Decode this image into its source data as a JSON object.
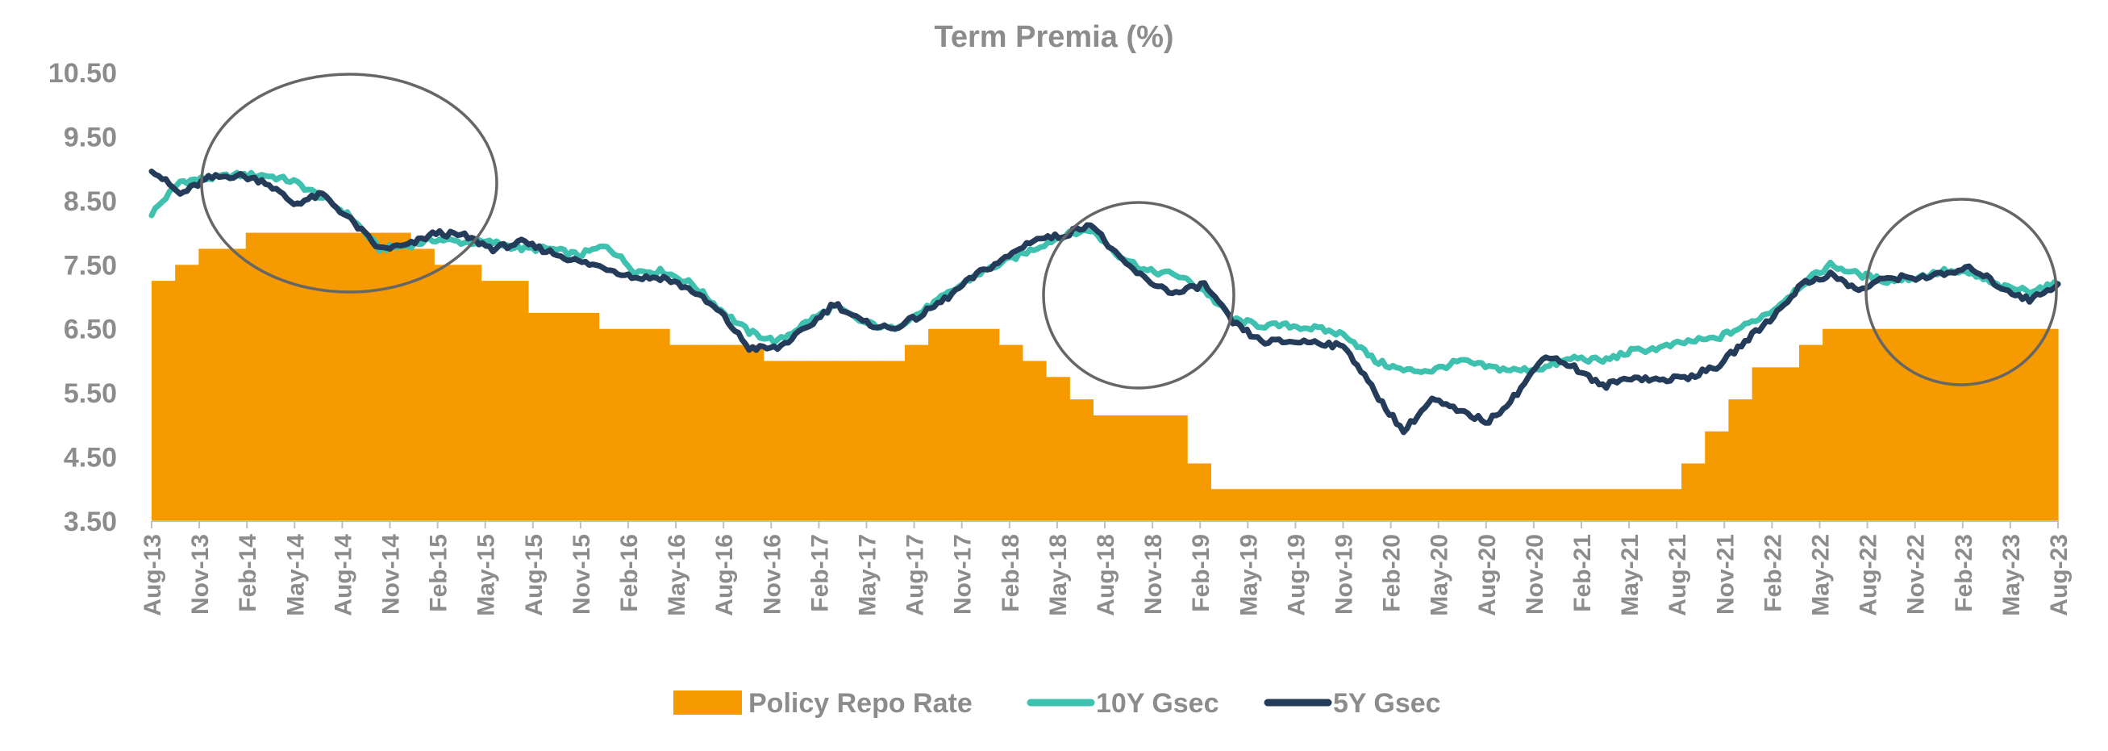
{
  "chart_data": {
    "type": "line",
    "title": "Term Premia (%)",
    "xlabel": "",
    "ylabel": "",
    "ylim": [
      3.5,
      10.5
    ],
    "y_ticks": [
      "10.50",
      "9.50",
      "8.50",
      "7.50",
      "6.50",
      "5.50",
      "4.50",
      "3.50"
    ],
    "x_ticks": [
      "Aug-13",
      "Nov-13",
      "Feb-14",
      "May-14",
      "Aug-14",
      "Nov-14",
      "Feb-15",
      "May-15",
      "Aug-15",
      "Nov-15",
      "Feb-16",
      "May-16",
      "Aug-16",
      "Nov-16",
      "Feb-17",
      "May-17",
      "Aug-17",
      "Nov-17",
      "Feb-18",
      "May-18",
      "Aug-18",
      "Nov-18",
      "Feb-19",
      "May-19",
      "Aug-19",
      "Nov-19",
      "Feb-20",
      "May-20",
      "Aug-20",
      "Nov-20",
      "Feb-21",
      "May-21",
      "Aug-21",
      "Nov-21",
      "Feb-22",
      "May-22",
      "Aug-22",
      "Nov-22",
      "Feb-23",
      "May-23",
      "Aug-23"
    ],
    "grid": false,
    "legend_position": "bottom",
    "series": [
      {
        "name": "Policy Repo Rate",
        "kind": "area-step",
        "color": "#f59a00",
        "values": [
          7.25,
          7.5,
          7.75,
          7.75,
          8,
          8,
          8,
          8,
          8,
          8,
          8,
          7.75,
          7.5,
          7.5,
          7.25,
          7.25,
          6.75,
          6.75,
          6.75,
          6.5,
          6.5,
          6.5,
          6.25,
          6.25,
          6.25,
          6.25,
          6,
          6,
          6,
          6,
          6,
          6,
          6.25,
          6.5,
          6.5,
          6.5,
          6.25,
          6,
          5.75,
          5.4,
          5.15,
          5.15,
          5.15,
          5.15,
          4.4,
          4,
          4,
          4,
          4,
          4,
          4,
          4,
          4,
          4,
          4,
          4,
          4,
          4,
          4,
          4,
          4,
          4,
          4,
          4,
          4,
          4.4,
          4.9,
          5.4,
          5.9,
          5.9,
          6.25,
          6.5,
          6.5,
          6.5,
          6.5,
          6.5,
          6.5,
          6.5,
          6.5,
          6.5,
          6.5
        ]
      },
      {
        "name": "10Y Gsec",
        "kind": "line",
        "color": "#3fc1b0",
        "values": [
          8.3,
          8.8,
          8.85,
          8.9,
          8.9,
          8.8,
          8.55,
          8.25,
          7.75,
          7.8,
          7.9,
          7.85,
          7.85,
          7.75,
          7.75,
          7.65,
          7.8,
          7.4,
          7.4,
          7.2,
          6.8,
          6.45,
          6.3,
          6.6,
          6.85,
          6.6,
          6.5,
          6.75,
          7.05,
          7.35,
          7.55,
          7.75,
          7.95,
          8.05,
          7.65,
          7.4,
          7.35,
          7.1,
          6.65,
          6.55,
          6.55,
          6.5,
          6.4,
          6.0,
          5.85,
          5.85,
          6.0,
          5.9,
          5.85,
          5.9,
          6.05,
          6.0,
          6.15,
          6.2,
          6.3,
          6.35,
          6.55,
          6.8,
          7.2,
          7.5,
          7.35,
          7.25,
          7.3,
          7.4,
          7.35,
          7.15,
          7.1,
          7.2
        ]
      },
      {
        "name": "5Y Gsec",
        "kind": "line",
        "color": "#243c59",
        "values": [
          9.0,
          8.6,
          8.85,
          8.9,
          8.8,
          8.45,
          8.6,
          8.2,
          7.75,
          7.8,
          8.0,
          7.95,
          7.75,
          7.85,
          7.7,
          7.55,
          7.45,
          7.3,
          7.3,
          7.1,
          6.75,
          6.2,
          6.2,
          6.5,
          6.9,
          6.6,
          6.5,
          6.7,
          7.0,
          7.35,
          7.6,
          7.9,
          7.95,
          8.15,
          7.6,
          7.25,
          7.05,
          7.2,
          6.6,
          6.3,
          6.3,
          6.3,
          6.2,
          5.5,
          4.9,
          5.4,
          5.2,
          5.05,
          5.5,
          6.1,
          5.9,
          5.6,
          5.75,
          5.7,
          5.75,
          5.9,
          6.3,
          6.7,
          7.2,
          7.35,
          7.1,
          7.3,
          7.3,
          7.35,
          7.45,
          7.15,
          6.95,
          7.2
        ]
      }
    ]
  }
}
